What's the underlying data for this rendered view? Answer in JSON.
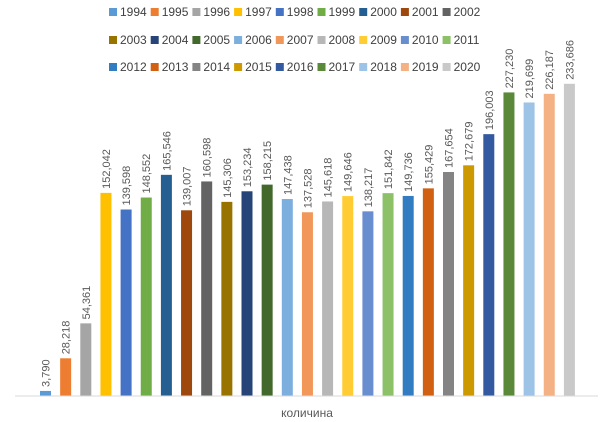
{
  "chart_data": {
    "type": "bar",
    "title": "",
    "xlabel": "количина",
    "ylabel": "",
    "ylim": [
      0,
      250000
    ],
    "grid": false,
    "legend_position": "top",
    "value_labels_rotated": true,
    "categories": [
      "количина"
    ],
    "series": [
      {
        "name": "1994",
        "value": 3790,
        "value_label": "3,790",
        "color": "#5B9BD5"
      },
      {
        "name": "1995",
        "value": 28218,
        "value_label": "28,218",
        "color": "#ED7D31"
      },
      {
        "name": "1996",
        "value": 54361,
        "value_label": "54,361",
        "color": "#A5A5A5"
      },
      {
        "name": "1997",
        "value": 152042,
        "value_label": "152,042",
        "color": "#FFC000"
      },
      {
        "name": "1998",
        "value": 139598,
        "value_label": "139,598",
        "color": "#4472C4"
      },
      {
        "name": "1999",
        "value": 148552,
        "value_label": "148,552",
        "color": "#70AD47"
      },
      {
        "name": "2000",
        "value": 165546,
        "value_label": "165,546",
        "color": "#255E91"
      },
      {
        "name": "2001",
        "value": 139007,
        "value_label": "139,007",
        "color": "#9E480E"
      },
      {
        "name": "2002",
        "value": 160598,
        "value_label": "160,598",
        "color": "#636363"
      },
      {
        "name": "2003",
        "value": 145306,
        "value_label": "145,306",
        "color": "#997300"
      },
      {
        "name": "2004",
        "value": 153234,
        "value_label": "153,234",
        "color": "#264478"
      },
      {
        "name": "2005",
        "value": 158215,
        "value_label": "158,215",
        "color": "#43682B"
      },
      {
        "name": "2006",
        "value": 147438,
        "value_label": "147,438",
        "color": "#7CAFDD"
      },
      {
        "name": "2007",
        "value": 137528,
        "value_label": "137,528",
        "color": "#F1975A"
      },
      {
        "name": "2008",
        "value": 145618,
        "value_label": "145,618",
        "color": "#B7B7B7"
      },
      {
        "name": "2009",
        "value": 149646,
        "value_label": "149,646",
        "color": "#FFCD33"
      },
      {
        "name": "2010",
        "value": 138217,
        "value_label": "138,217",
        "color": "#698ED0"
      },
      {
        "name": "2011",
        "value": 151842,
        "value_label": "151,842",
        "color": "#8CC168"
      },
      {
        "name": "2012",
        "value": 149736,
        "value_label": "149,736",
        "color": "#327DC2"
      },
      {
        "name": "2013",
        "value": 155429,
        "value_label": "155,429",
        "color": "#D26012"
      },
      {
        "name": "2014",
        "value": 167654,
        "value_label": "167,654",
        "color": "#848484"
      },
      {
        "name": "2015",
        "value": 172679,
        "value_label": "172,679",
        "color": "#CC9A00"
      },
      {
        "name": "2016",
        "value": 196003,
        "value_label": "196,003",
        "color": "#335AA1"
      },
      {
        "name": "2017",
        "value": 227230,
        "value_label": "227,230",
        "color": "#5A8A39"
      },
      {
        "name": "2018",
        "value": 219699,
        "value_label": "219,699",
        "color": "#9DC3E6"
      },
      {
        "name": "2019",
        "value": 226187,
        "value_label": "226,187",
        "color": "#F4B183"
      },
      {
        "name": "2020",
        "value": 233686,
        "value_label": "233,686",
        "color": "#C9C9C9"
      }
    ]
  }
}
